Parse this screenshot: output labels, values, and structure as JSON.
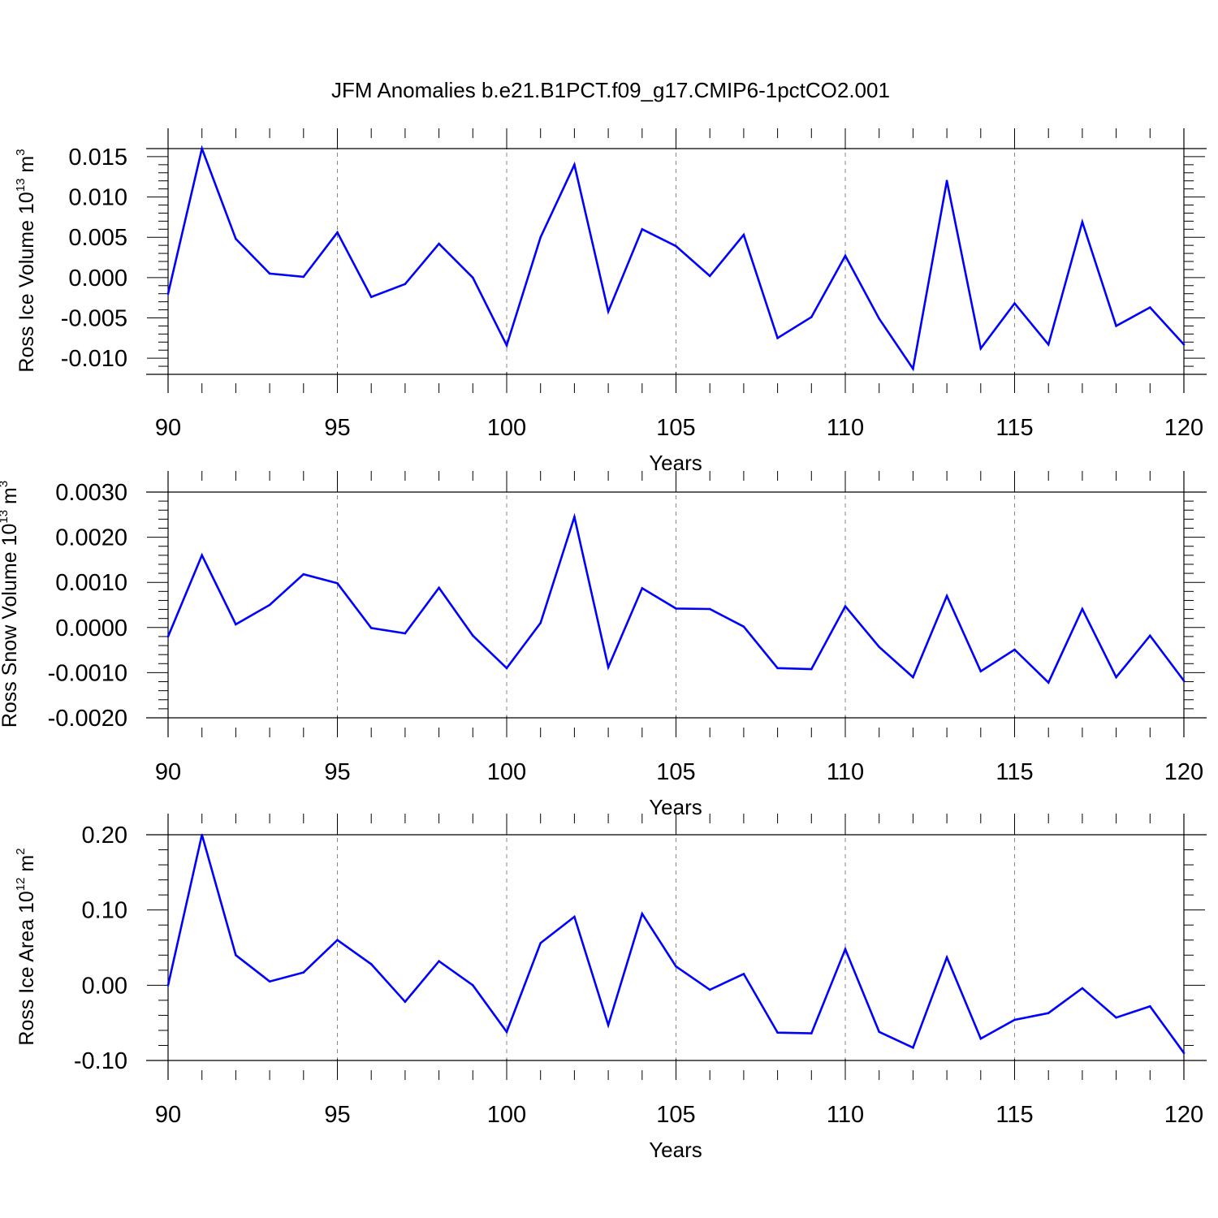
{
  "title": "JFM Anomalies b.e21.B1PCT.f09_g17.CMIP6-1pctCO2.001",
  "chart_data": [
    {
      "type": "line",
      "ylabel": {
        "text": "Ross Ice Volume 10",
        "exp": "13",
        "unit": " m",
        "unit_exp": "3"
      },
      "xlabel": "Years",
      "xlim": [
        90,
        120
      ],
      "ylim": [
        -0.012,
        0.016
      ],
      "xticks": [
        90,
        95,
        100,
        105,
        110,
        115,
        120
      ],
      "yticks": [
        -0.01,
        -0.005,
        0.0,
        0.005,
        0.01,
        0.015
      ],
      "ytick_labels": [
        "-0.010",
        "-0.005",
        "0.000",
        "0.005",
        "0.010",
        "0.015"
      ],
      "color": "#0000ff",
      "grid_x": "dashed at major x ticks",
      "x": [
        90,
        91,
        92,
        93,
        94,
        95,
        96,
        97,
        98,
        99,
        100,
        101,
        102,
        103,
        104,
        105,
        106,
        107,
        108,
        109,
        110,
        111,
        112,
        113,
        114,
        115,
        116,
        117,
        118,
        119,
        120
      ],
      "values": [
        -0.002,
        0.016,
        0.0048,
        0.0005,
        0.0001,
        0.0056,
        -0.0024,
        -0.0008,
        0.0042,
        0.0,
        -0.0084,
        0.005,
        0.014,
        -0.0042,
        0.006,
        0.0039,
        0.0002,
        0.0053,
        -0.0075,
        -0.0049,
        0.0027,
        -0.0051,
        -0.0113,
        0.012,
        -0.0088,
        -0.0032,
        -0.0083,
        0.0069,
        -0.006,
        -0.0037,
        -0.0083
      ]
    },
    {
      "type": "line",
      "ylabel": {
        "text": "Ross Snow Volume 10",
        "exp": "13",
        "unit": " m",
        "unit_exp": "3"
      },
      "xlabel": "Years",
      "xlim": [
        90,
        120
      ],
      "ylim": [
        -0.002,
        0.003
      ],
      "xticks": [
        90,
        95,
        100,
        105,
        110,
        115,
        120
      ],
      "yticks": [
        -0.002,
        -0.001,
        0.0,
        0.001,
        0.002,
        0.003
      ],
      "ytick_labels": [
        "-0.0020",
        "-0.0010",
        "0.0000",
        "0.0010",
        "0.0020",
        "0.0030"
      ],
      "color": "#0000ff",
      "grid_x": "dashed at major x ticks",
      "x": [
        90,
        91,
        92,
        93,
        94,
        95,
        96,
        97,
        98,
        99,
        100,
        101,
        102,
        103,
        104,
        105,
        106,
        107,
        108,
        109,
        110,
        111,
        112,
        113,
        114,
        115,
        116,
        117,
        118,
        119,
        120
      ],
      "values": [
        -0.0002,
        0.0016,
        7e-05,
        0.0005,
        0.00118,
        0.00098,
        -1e-05,
        -0.00013,
        0.00088,
        -0.00018,
        -0.0009,
        0.0001,
        0.00245,
        -0.00088,
        0.00087,
        0.00042,
        0.00041,
        2e-05,
        -0.0009,
        -0.00092,
        0.00047,
        -0.00043,
        -0.0011,
        0.0007,
        -0.00097,
        -0.00049,
        -0.00122,
        0.00041,
        -0.0011,
        -0.00018,
        -0.00118
      ]
    },
    {
      "type": "line",
      "ylabel": {
        "text": "Ross Ice Area 10",
        "exp": "12",
        "unit": " m",
        "unit_exp": "2"
      },
      "xlabel": "Years",
      "xlim": [
        90,
        120
      ],
      "ylim": [
        -0.1,
        0.2
      ],
      "xticks": [
        90,
        95,
        100,
        105,
        110,
        115,
        120
      ],
      "yticks": [
        -0.1,
        0.0,
        0.1,
        0.2
      ],
      "ytick_labels": [
        "-0.10",
        "0.00",
        "0.10",
        "0.20"
      ],
      "color": "#0000ff",
      "grid_x": "dashed at major x ticks",
      "x": [
        90,
        91,
        92,
        93,
        94,
        95,
        96,
        97,
        98,
        99,
        100,
        101,
        102,
        103,
        104,
        105,
        106,
        107,
        108,
        109,
        110,
        111,
        112,
        113,
        114,
        115,
        116,
        117,
        118,
        119,
        120
      ],
      "values": [
        0.0,
        0.2,
        0.04,
        0.005,
        0.017,
        0.06,
        0.028,
        -0.022,
        0.032,
        0.0,
        -0.062,
        0.056,
        0.091,
        -0.053,
        0.095,
        0.025,
        -0.006,
        0.015,
        -0.063,
        -0.064,
        0.048,
        -0.062,
        -0.083,
        0.037,
        -0.071,
        -0.046,
        -0.037,
        -0.004,
        -0.043,
        -0.028,
        -0.09
      ]
    }
  ]
}
